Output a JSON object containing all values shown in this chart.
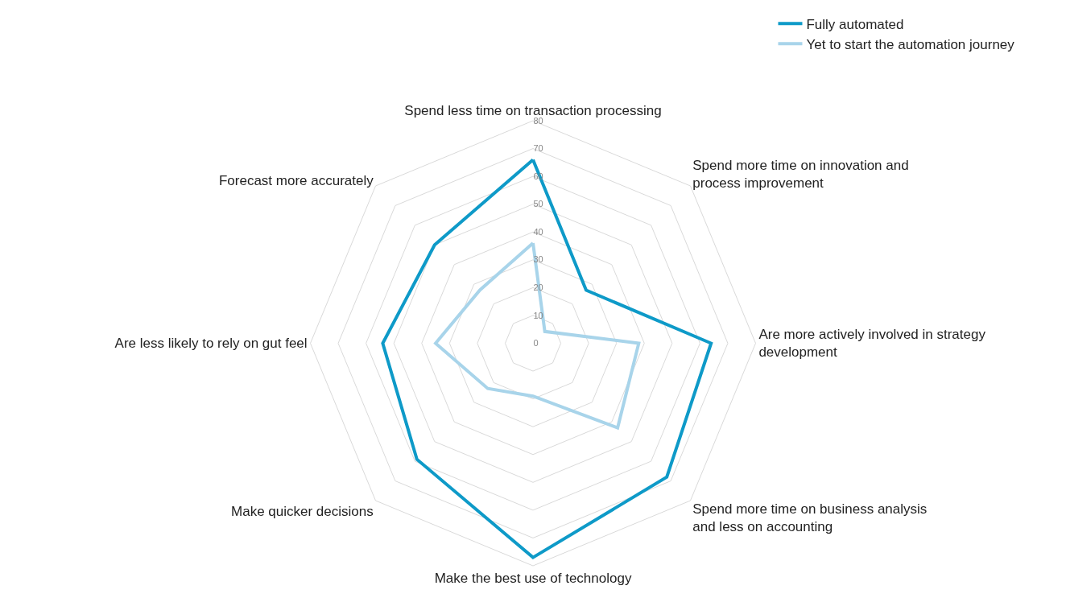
{
  "chart_data": {
    "type": "radar",
    "categories": [
      "Spend less time on transaction processing",
      "Spend more time on innovation and\nprocess improvement",
      "Are more actively involved in strategy\ndevelopment",
      "Spend more time on business analysis\nand less on accounting",
      "Make the best use of technology",
      "Make quicker decisions",
      "Are less likely to rely on gut feel",
      "Forecast more accurately"
    ],
    "series": [
      {
        "name": "Fully automated",
        "color": "#0e9ac8",
        "values": [
          66,
          27,
          64,
          68,
          77,
          59,
          54,
          50
        ]
      },
      {
        "name": "Yet to start the automation journey",
        "color": "#a8d4ea",
        "values": [
          36,
          6,
          38,
          43,
          19,
          23,
          35,
          27
        ]
      }
    ],
    "ylim": [
      0,
      80
    ],
    "yticks": [
      0,
      10,
      20,
      30,
      40,
      50,
      60,
      70,
      80
    ],
    "grid": true,
    "legend": "top right",
    "marker": "none",
    "line_style": "solid"
  }
}
